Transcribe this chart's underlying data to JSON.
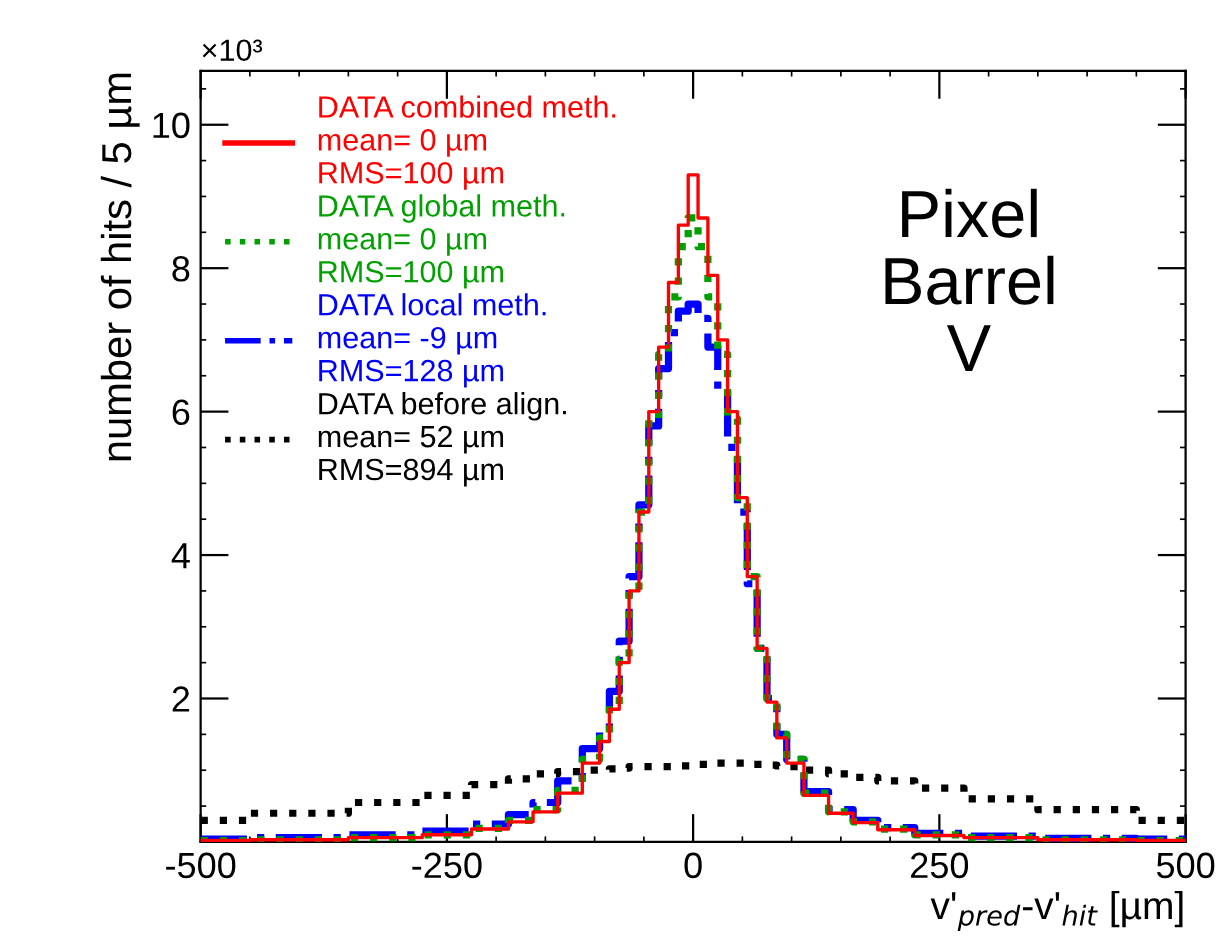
{
  "chart_data": {
    "type": "step",
    "xlabel": "v'$_{pred}$-v'$_{hit}$ [µm]",
    "ylabel": "number of hits / 5 µm",
    "annotations": [
      "×10³",
      "Pixel\nBarrel\nV"
    ],
    "x": [
      -500,
      -400,
      -300,
      -250,
      -200,
      -175,
      -150,
      -125,
      -100,
      -90,
      -80,
      -70,
      -60,
      -50,
      -40,
      -30,
      -20,
      -10,
      0,
      10,
      20,
      30,
      40,
      50,
      60,
      70,
      80,
      90,
      100,
      125,
      150,
      175,
      200,
      250,
      300,
      400,
      500
    ],
    "series": [
      {
        "name": "DATA combined meth.\nmean= 0 µm\nRMS=100 µm",
        "color": "#ff0000",
        "line_style": "solid",
        "values": [
          0.02,
          0.03,
          0.06,
          0.1,
          0.18,
          0.28,
          0.42,
          0.68,
          1.1,
          1.4,
          1.85,
          2.5,
          3.5,
          4.6,
          6.0,
          6.9,
          7.8,
          8.6,
          9.3,
          8.7,
          7.9,
          7.0,
          6.0,
          4.8,
          3.7,
          2.7,
          1.95,
          1.45,
          1.1,
          0.65,
          0.4,
          0.27,
          0.17,
          0.09,
          0.06,
          0.03,
          0.02
        ]
      },
      {
        "name": "DATA global meth.\nmean= 0 µm\nRMS=100 µm",
        "color": "#00a000",
        "line_style": "dotted",
        "values": [
          0.02,
          0.03,
          0.06,
          0.1,
          0.19,
          0.3,
          0.45,
          0.72,
          1.15,
          1.45,
          1.9,
          2.55,
          3.5,
          4.6,
          5.9,
          6.8,
          7.6,
          8.3,
          8.7,
          8.3,
          7.6,
          6.8,
          5.9,
          4.8,
          3.7,
          2.7,
          2.0,
          1.5,
          1.15,
          0.68,
          0.42,
          0.28,
          0.18,
          0.1,
          0.06,
          0.03,
          0.02
        ]
      },
      {
        "name": "DATA local meth.\nmean= -9 µm\nRMS=128 µm",
        "color": "#0000ff",
        "line_style": "dashdot",
        "values": [
          0.04,
          0.06,
          0.1,
          0.15,
          0.25,
          0.38,
          0.55,
          0.85,
          1.3,
          1.6,
          2.1,
          2.8,
          3.7,
          4.7,
          5.8,
          6.6,
          7.1,
          7.4,
          7.5,
          7.3,
          6.9,
          6.3,
          5.5,
          4.6,
          3.6,
          2.7,
          2.0,
          1.5,
          1.15,
          0.7,
          0.45,
          0.3,
          0.2,
          0.12,
          0.08,
          0.05,
          0.04
        ]
      },
      {
        "name": "DATA before align.\nmean= 52 µm\nRMS=894 µm",
        "color": "#000000",
        "line_style": "dotted",
        "values": [
          0.3,
          0.4,
          0.55,
          0.65,
          0.8,
          0.88,
          0.95,
          0.98,
          1.0,
          1.0,
          1.02,
          1.03,
          1.05,
          1.05,
          1.05,
          1.05,
          1.05,
          1.06,
          1.06,
          1.08,
          1.1,
          1.1,
          1.1,
          1.1,
          1.08,
          1.08,
          1.07,
          1.06,
          1.05,
          1.0,
          0.95,
          0.9,
          0.85,
          0.75,
          0.6,
          0.45,
          0.3
        ]
      }
    ],
    "xlim": [
      -500,
      500
    ],
    "xticks": [
      -500,
      -250,
      0,
      250,
      500
    ],
    "ylim": [
      0,
      10.75
    ],
    "yticks": [
      2,
      4,
      6,
      8,
      10
    ],
    "legend": "top left",
    "grid": false
  }
}
